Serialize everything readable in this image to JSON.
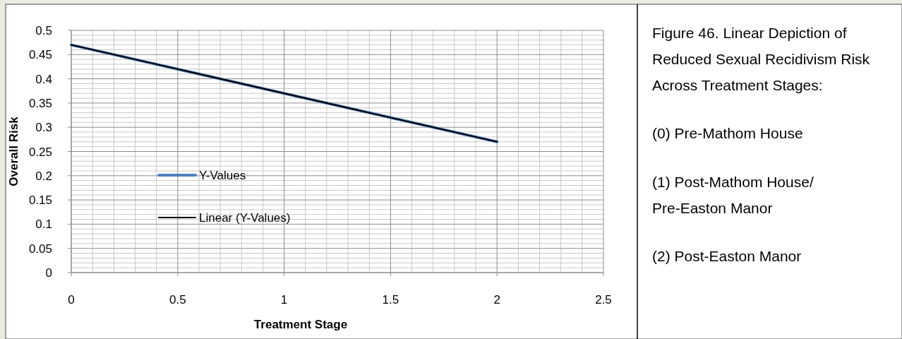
{
  "chart_data": {
    "type": "line",
    "title": "Figure 46. Linear Depiction of Reduced Sexual Recidivism Risk Across Treatment Stages:",
    "xlabel": "Treatment Stage",
    "ylabel": "Overall Risk",
    "x": [
      0,
      1,
      2
    ],
    "series": [
      {
        "name": "Y-Values",
        "color": "#4f81bd",
        "values": [
          0.47,
          0.37,
          0.27
        ]
      },
      {
        "name": "Linear (Y-Values)",
        "type": "line",
        "color": "#000000",
        "x": [
          0,
          2
        ],
        "values": [
          0.47,
          0.27
        ]
      }
    ],
    "xlim": [
      0,
      2.5
    ],
    "xticks": [
      0,
      0.5,
      1,
      1.5,
      2,
      2.5
    ],
    "ylim": [
      0,
      0.5
    ],
    "yticks": [
      0,
      0.05,
      0.1,
      0.15,
      0.2,
      0.25,
      0.3,
      0.35,
      0.4,
      0.45,
      0.5
    ],
    "grid": true,
    "legend": "left",
    "marker": "none",
    "line_style": "solid",
    "annotations": [
      "(0) Pre-Mathom House",
      "(1) Post-Mathom House/ Pre-Easton Manor",
      "(2) Post-Easton Manor"
    ]
  }
}
